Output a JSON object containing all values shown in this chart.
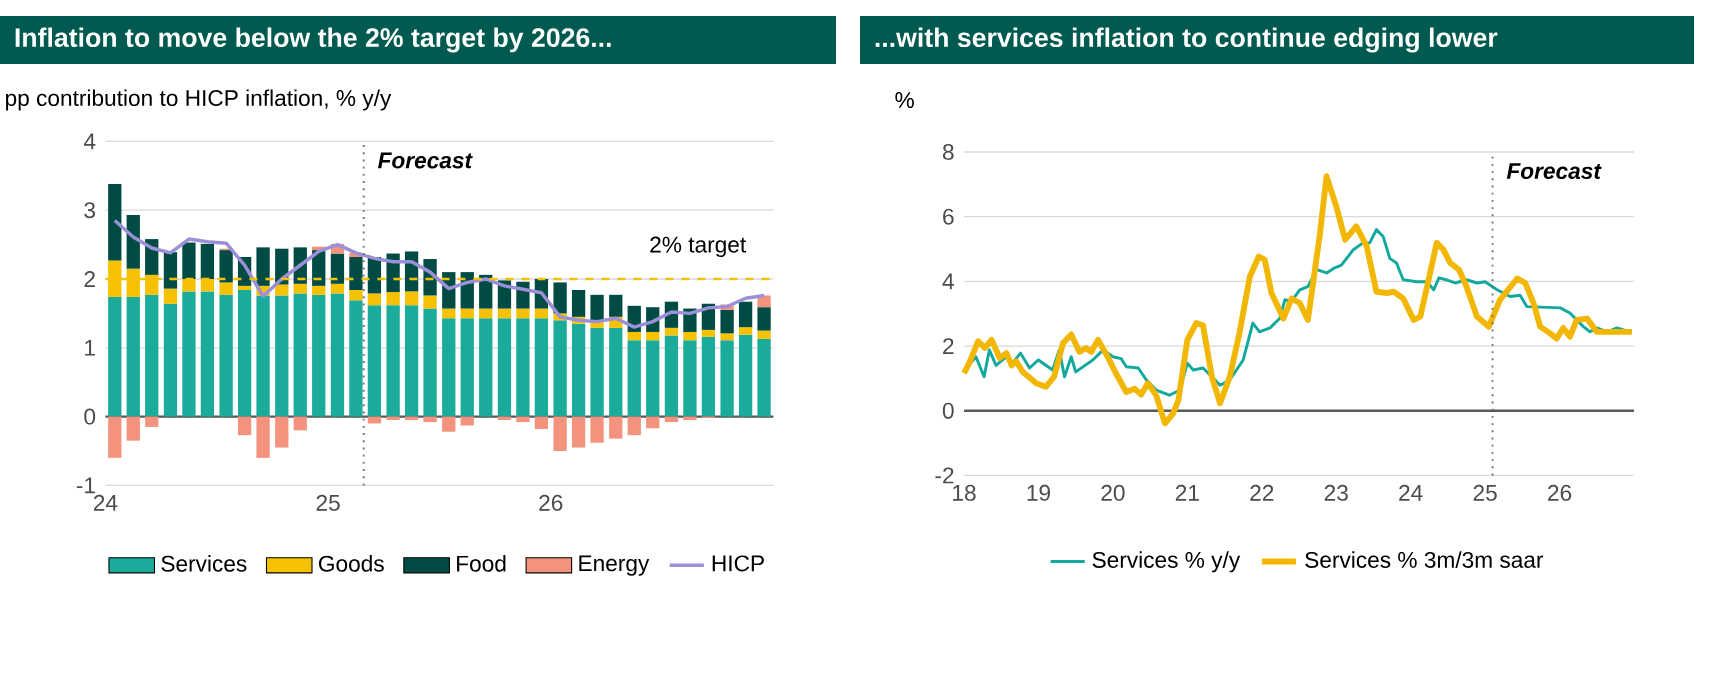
{
  "chart_data": [
    {
      "type": "bar",
      "title": "Inflation to move below the 2% target by 2026...",
      "ylabel": "pp contribution to HICP inflation, % y/y",
      "stacked": true,
      "x": [
        24.042,
        24.125,
        24.208,
        24.292,
        24.375,
        24.458,
        24.542,
        24.625,
        24.708,
        24.792,
        24.875,
        24.958,
        25.042,
        25.125,
        25.208,
        25.292,
        25.375,
        25.458,
        25.542,
        25.625,
        25.708,
        25.792,
        25.875,
        25.958,
        26.042,
        26.125,
        26.208,
        26.292,
        26.375,
        26.458,
        26.542,
        26.625,
        26.708,
        26.792,
        26.875,
        26.958
      ],
      "series": [
        {
          "name": "Services",
          "color": "#1aab9b",
          "values": [
            1.74,
            1.74,
            1.77,
            1.64,
            1.82,
            1.82,
            1.77,
            1.84,
            1.76,
            1.76,
            1.79,
            1.77,
            1.79,
            1.69,
            1.62,
            1.62,
            1.62,
            1.57,
            1.43,
            1.43,
            1.43,
            1.43,
            1.43,
            1.43,
            1.4,
            1.35,
            1.29,
            1.29,
            1.11,
            1.11,
            1.18,
            1.11,
            1.16,
            1.11,
            1.19,
            1.13
          ]
        },
        {
          "name": "Goods",
          "color": "#f5c100",
          "values": [
            0.53,
            0.41,
            0.29,
            0.22,
            0.18,
            0.18,
            0.18,
            0.06,
            0.14,
            0.16,
            0.14,
            0.13,
            0.14,
            0.15,
            0.17,
            0.19,
            0.2,
            0.19,
            0.14,
            0.14,
            0.14,
            0.14,
            0.14,
            0.14,
            0.1,
            0.1,
            0.11,
            0.16,
            0.12,
            0.12,
            0.11,
            0.12,
            0.1,
            0.1,
            0.11,
            0.12
          ]
        },
        {
          "name": "Food",
          "color": "#004c45",
          "values": [
            1.11,
            0.78,
            0.52,
            0.53,
            0.53,
            0.51,
            0.47,
            0.42,
            0.56,
            0.52,
            0.53,
            0.52,
            0.44,
            0.48,
            0.53,
            0.56,
            0.58,
            0.53,
            0.53,
            0.53,
            0.49,
            0.41,
            0.39,
            0.43,
            0.45,
            0.39,
            0.37,
            0.32,
            0.38,
            0.36,
            0.38,
            0.34,
            0.38,
            0.34,
            0.37,
            0.34
          ]
        },
        {
          "name": "Energy",
          "color": "#f4937d",
          "values": [
            -0.6,
            -0.35,
            -0.15,
            0,
            0,
            null,
            0.02,
            -0.27,
            -0.6,
            -0.45,
            -0.2,
            0.05,
            0.14,
            0.06,
            -0.1,
            -0.05,
            -0.05,
            -0.08,
            -0.22,
            -0.13,
            0,
            -0.05,
            -0.08,
            -0.18,
            -0.5,
            -0.45,
            -0.38,
            -0.32,
            -0.27,
            -0.17,
            -0.08,
            -0.05,
            -0.02,
            0.08,
            null,
            0.17
          ]
        },
        {
          "name": "HICP",
          "type": "line",
          "color": "#9b8fd8",
          "values": [
            2.85,
            2.61,
            2.45,
            2.38,
            2.58,
            2.54,
            2.52,
            2.2,
            1.75,
            2.0,
            2.2,
            2.4,
            2.5,
            2.38,
            2.3,
            2.25,
            2.25,
            2.1,
            1.86,
            1.95,
            2.0,
            1.9,
            1.85,
            1.8,
            1.45,
            1.4,
            1.38,
            1.43,
            1.3,
            1.38,
            1.52,
            1.5,
            1.58,
            1.6,
            1.72,
            1.76
          ]
        }
      ],
      "xlim": [
        24,
        27
      ],
      "ylim": [
        -1,
        4
      ],
      "xticks": [
        24,
        25,
        26
      ],
      "yticks": [
        -1,
        0,
        1,
        2,
        3,
        4
      ],
      "grid": "y",
      "legend": "bottom",
      "ref_lines": [
        {
          "axis": "x",
          "value": 25.16,
          "label": "Forecast",
          "color": "#707070",
          "line_style": "dotted"
        },
        {
          "axis": "y",
          "value": 2,
          "label": "2% target",
          "color": "#f5c100",
          "line_style": "dashed"
        }
      ]
    },
    {
      "type": "line",
      "title": "...with services inflation to continue edging lower",
      "ylabel": "%",
      "series": [
        {
          "name": "Services % y/y",
          "color": "#13a89e",
          "x": [
            18.0,
            18.16,
            18.27,
            18.34,
            18.43,
            18.57,
            18.65,
            18.76,
            18.88,
            19.0,
            19.19,
            19.28,
            19.35,
            19.44,
            19.5,
            19.73,
            19.87,
            20.0,
            20.11,
            20.18,
            20.34,
            20.45,
            20.58,
            20.76,
            20.9,
            21.0,
            21.08,
            21.21,
            21.33,
            21.44,
            21.57,
            21.75,
            21.88,
            21.97,
            22.11,
            22.24,
            22.31,
            22.4,
            22.51,
            22.62,
            22.74,
            22.87,
            22.98,
            23.07,
            23.23,
            23.36,
            23.45,
            23.54,
            23.63,
            23.72,
            23.81,
            23.9,
            24.08,
            24.22,
            24.31,
            24.38,
            24.48,
            24.6,
            24.75,
            24.89,
            25.0,
            25.16,
            25.34,
            25.47,
            25.56,
            26.01,
            26.14,
            26.32,
            26.41,
            26.5,
            26.64,
            26.77,
            26.86,
            26.97
          ],
          "values": [
            1.24,
            1.67,
            1.05,
            1.88,
            1.4,
            1.67,
            1.47,
            1.78,
            1.32,
            1.57,
            1.26,
            1.88,
            1.05,
            1.67,
            1.2,
            1.57,
            1.88,
            1.67,
            1.61,
            1.36,
            1.32,
            0.95,
            0.64,
            0.48,
            0.64,
            1.47,
            1.26,
            1.32,
            1.05,
            0.79,
            0.95,
            1.57,
            2.71,
            2.44,
            2.56,
            2.85,
            3.43,
            3.39,
            3.74,
            3.84,
            4.36,
            4.26,
            4.42,
            4.5,
            4.98,
            5.19,
            5.19,
            5.6,
            5.39,
            4.71,
            4.57,
            4.05,
            3.99,
            3.99,
            3.74,
            4.11,
            4.05,
            3.95,
            4.05,
            3.95,
            3.99,
            3.74,
            3.53,
            3.57,
            3.22,
            3.18,
            3.02,
            2.6,
            2.44,
            2.56,
            2.44,
            2.56,
            2.5,
            2.44
          ]
        },
        {
          "name": "Services % 3m/3m saar",
          "color": "#f2b705",
          "x": [
            18.0,
            18.07,
            18.19,
            18.28,
            18.37,
            18.48,
            18.57,
            18.64,
            18.7,
            18.79,
            18.97,
            19.1,
            19.21,
            19.33,
            19.44,
            19.55,
            19.64,
            19.71,
            19.8,
            19.93,
            20.04,
            20.18,
            20.29,
            20.38,
            20.47,
            20.58,
            20.7,
            20.81,
            20.88,
            21.0,
            21.12,
            21.21,
            21.33,
            21.44,
            21.57,
            21.7,
            21.84,
            21.96,
            22.04,
            22.13,
            22.29,
            22.4,
            22.51,
            22.62,
            22.78,
            22.87,
            23.0,
            23.12,
            23.27,
            23.41,
            23.54,
            23.68,
            23.77,
            23.9,
            24.04,
            24.13,
            24.22,
            24.35,
            24.44,
            24.53,
            24.65,
            24.75,
            24.89,
            25.05,
            25.2,
            25.43,
            25.54,
            25.65,
            25.74,
            25.87,
            25.96,
            26.05,
            26.14,
            26.23,
            26.37,
            26.5,
            26.97
          ],
          "values": [
            1.16,
            1.47,
            2.15,
            1.94,
            2.19,
            1.63,
            1.78,
            1.4,
            1.53,
            1.2,
            0.85,
            0.74,
            1.05,
            2.09,
            2.36,
            1.82,
            1.94,
            1.82,
            2.19,
            1.67,
            1.16,
            0.58,
            0.68,
            0.5,
            0.85,
            0.48,
            -0.39,
            -0.08,
            0.33,
            2.19,
            2.71,
            2.64,
            1.05,
            0.23,
            1.05,
            2.4,
            4.15,
            4.77,
            4.67,
            3.64,
            2.85,
            3.47,
            3.33,
            2.81,
            5.45,
            7.25,
            6.32,
            5.29,
            5.7,
            5.08,
            3.68,
            3.64,
            3.68,
            3.47,
            2.81,
            2.91,
            3.84,
            5.19,
            4.98,
            4.57,
            4.36,
            3.84,
            2.91,
            2.6,
            3.43,
            4.09,
            3.95,
            3.33,
            2.6,
            2.4,
            2.23,
            2.56,
            2.29,
            2.81,
            2.85,
            2.44,
            2.44
          ]
        }
      ],
      "xlim": [
        18,
        27
      ],
      "ylim": [
        -2,
        8
      ],
      "xticks": [
        18,
        19,
        20,
        21,
        22,
        23,
        24,
        25,
        26
      ],
      "yticks": [
        -2,
        0,
        2,
        4,
        6,
        8
      ],
      "grid": "y",
      "legend": "bottom",
      "ref_lines": [
        {
          "axis": "x",
          "value": 25.1,
          "label": "Forecast",
          "color": "#707070",
          "line_style": "dotted"
        }
      ]
    }
  ]
}
